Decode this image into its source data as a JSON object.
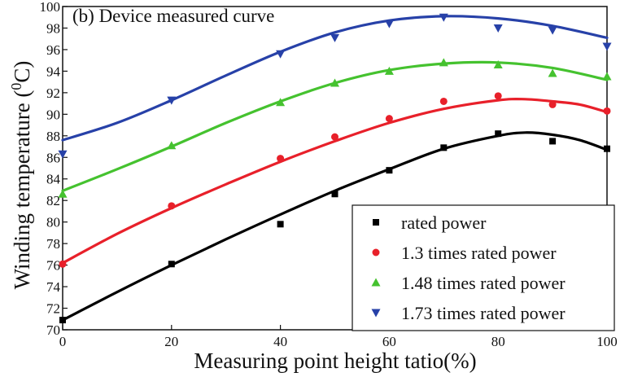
{
  "chart_data": {
    "type": "scatter",
    "title": "(b) Device measured curve",
    "xlabel": "Measuring point height tatio(%)",
    "ylabel": "Winding temperature (°C)",
    "ylabel_parts": {
      "main": "Winding temperature (",
      "superscript": "0",
      "unit": "C)"
    },
    "xlim": [
      0,
      100
    ],
    "ylim": [
      70,
      100
    ],
    "xticks": [
      0,
      20,
      40,
      60,
      80,
      100
    ],
    "yticks": [
      70,
      72,
      74,
      76,
      78,
      80,
      82,
      84,
      86,
      88,
      90,
      92,
      94,
      96,
      98,
      100
    ],
    "grid": false,
    "legend_position": "bottom-right",
    "series": [
      {
        "name": "rated power",
        "color": "#000000",
        "marker": "square",
        "x": [
          0,
          20,
          40,
          50,
          60,
          70,
          80,
          90,
          100
        ],
        "y": [
          70.9,
          76.1,
          79.8,
          82.6,
          84.8,
          86.9,
          88.2,
          87.5,
          86.8
        ],
        "fit_x": [
          0,
          10,
          20,
          30,
          40,
          50,
          60,
          70,
          80,
          85,
          90,
          95,
          100
        ],
        "fit_y": [
          70.9,
          73.5,
          76.0,
          78.4,
          80.7,
          82.9,
          84.9,
          86.8,
          88.0,
          88.3,
          88.1,
          87.6,
          86.7
        ]
      },
      {
        "name": "1.3 times rated power",
        "color": "#e8202a",
        "marker": "circle",
        "x": [
          0,
          20,
          40,
          50,
          60,
          70,
          80,
          90,
          100
        ],
        "y": [
          76.1,
          81.5,
          85.9,
          87.9,
          89.6,
          91.2,
          91.7,
          90.9,
          90.3
        ],
        "fit_x": [
          0,
          10,
          20,
          30,
          40,
          50,
          60,
          70,
          80,
          85,
          90,
          95,
          100
        ],
        "fit_y": [
          76.2,
          78.9,
          81.3,
          83.5,
          85.6,
          87.5,
          89.2,
          90.5,
          91.3,
          91.4,
          91.2,
          90.9,
          90.2
        ]
      },
      {
        "name": "1.48 times rated power",
        "color": "#45c22f",
        "marker": "triangle-up",
        "x": [
          0,
          20,
          40,
          50,
          60,
          70,
          80,
          90,
          100
        ],
        "y": [
          82.6,
          87.1,
          91.1,
          92.9,
          94.0,
          94.8,
          94.6,
          93.8,
          93.5
        ],
        "fit_x": [
          0,
          10,
          20,
          30,
          40,
          50,
          60,
          70,
          80,
          90,
          100
        ],
        "fit_y": [
          82.9,
          84.9,
          87.0,
          89.2,
          91.2,
          92.9,
          94.1,
          94.7,
          94.8,
          94.3,
          93.2
        ]
      },
      {
        "name": "1.73 times rated power",
        "color": "#2741a8",
        "marker": "triangle-down",
        "x": [
          0,
          20,
          40,
          50,
          60,
          70,
          80,
          90,
          100
        ],
        "y": [
          86.3,
          91.3,
          95.6,
          97.1,
          98.4,
          99.0,
          98.0,
          97.8,
          96.3
        ],
        "fit_x": [
          0,
          10,
          20,
          30,
          40,
          50,
          60,
          70,
          80,
          90,
          100
        ],
        "fit_y": [
          87.6,
          89.2,
          91.3,
          93.6,
          95.8,
          97.6,
          98.7,
          99.1,
          98.9,
          98.2,
          97.1
        ]
      }
    ]
  }
}
